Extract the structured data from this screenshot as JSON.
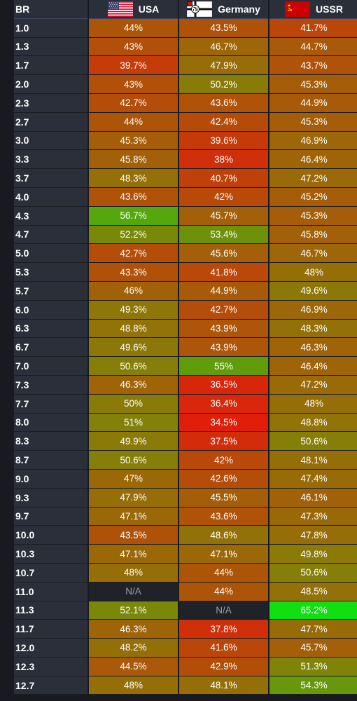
{
  "header": {
    "br_label": "BR",
    "nations": [
      {
        "name": "USA",
        "flag_icon": "usa-flag-icon"
      },
      {
        "name": "Germany",
        "flag_icon": "germany-flag-icon"
      },
      {
        "name": "USSR",
        "flag_icon": "ussr-flag-icon"
      }
    ]
  },
  "rows": [
    {
      "br": "1.0",
      "values": [
        "44%",
        "43.5%",
        "41.7%"
      ]
    },
    {
      "br": "1.3",
      "values": [
        "43%",
        "46.7%",
        "44.7%"
      ]
    },
    {
      "br": "1.7",
      "values": [
        "39.7%",
        "47.9%",
        "43.7%"
      ]
    },
    {
      "br": "2.0",
      "values": [
        "43%",
        "50.2%",
        "45.3%"
      ]
    },
    {
      "br": "2.3",
      "values": [
        "42.7%",
        "43.6%",
        "44.9%"
      ]
    },
    {
      "br": "2.7",
      "values": [
        "44%",
        "42.4%",
        "45.3%"
      ]
    },
    {
      "br": "3.0",
      "values": [
        "45.3%",
        "39.6%",
        "46.9%"
      ]
    },
    {
      "br": "3.3",
      "values": [
        "45.8%",
        "38%",
        "46.4%"
      ]
    },
    {
      "br": "3.7",
      "values": [
        "48.3%",
        "40.7%",
        "47.2%"
      ]
    },
    {
      "br": "4.0",
      "values": [
        "43.6%",
        "42%",
        "45.2%"
      ]
    },
    {
      "br": "4.3",
      "values": [
        "56.7%",
        "45.7%",
        "45.3%"
      ]
    },
    {
      "br": "4.7",
      "values": [
        "52.2%",
        "53.4%",
        "45.8%"
      ]
    },
    {
      "br": "5.0",
      "values": [
        "42.7%",
        "45.6%",
        "46.7%"
      ]
    },
    {
      "br": "5.3",
      "values": [
        "43.3%",
        "41.8%",
        "48%"
      ]
    },
    {
      "br": "5.7",
      "values": [
        "46%",
        "44.9%",
        "49.6%"
      ]
    },
    {
      "br": "6.0",
      "values": [
        "49.3%",
        "42.7%",
        "46.9%"
      ]
    },
    {
      "br": "6.3",
      "values": [
        "48.8%",
        "43.9%",
        "48.3%"
      ]
    },
    {
      "br": "6.7",
      "values": [
        "49.6%",
        "43.9%",
        "46.3%"
      ]
    },
    {
      "br": "7.0",
      "values": [
        "50.6%",
        "55%",
        "46.4%"
      ]
    },
    {
      "br": "7.3",
      "values": [
        "46.3%",
        "36.5%",
        "47.2%"
      ]
    },
    {
      "br": "7.7",
      "values": [
        "50%",
        "36.4%",
        "48%"
      ]
    },
    {
      "br": "8.0",
      "values": [
        "51%",
        "34.5%",
        "48.8%"
      ]
    },
    {
      "br": "8.3",
      "values": [
        "49.9%",
        "37.5%",
        "50.6%"
      ]
    },
    {
      "br": "8.7",
      "values": [
        "50.6%",
        "42%",
        "48.1%"
      ]
    },
    {
      "br": "9.0",
      "values": [
        "47%",
        "42.6%",
        "47.4%"
      ]
    },
    {
      "br": "9.3",
      "values": [
        "47.9%",
        "45.5%",
        "46.1%"
      ]
    },
    {
      "br": "9.7",
      "values": [
        "47.1%",
        "43.6%",
        "47.3%"
      ]
    },
    {
      "br": "10.0",
      "values": [
        "43.5%",
        "48.6%",
        "47.8%"
      ]
    },
    {
      "br": "10.3",
      "values": [
        "47.1%",
        "47.1%",
        "49.8%"
      ]
    },
    {
      "br": "10.7",
      "values": [
        "48%",
        "44%",
        "50.6%"
      ]
    },
    {
      "br": "11.0",
      "values": [
        "N/A",
        "44%",
        "48.5%"
      ]
    },
    {
      "br": "11.3",
      "values": [
        "52.1%",
        "N/A",
        "65.2%"
      ]
    },
    {
      "br": "11.7",
      "values": [
        "46.3%",
        "37.8%",
        "47.7%"
      ]
    },
    {
      "br": "12.0",
      "values": [
        "48.2%",
        "41.6%",
        "45.7%"
      ]
    },
    {
      "br": "12.3",
      "values": [
        "44.5%",
        "42.9%",
        "51.3%"
      ]
    },
    {
      "br": "12.7",
      "values": [
        "48%",
        "48.1%",
        "54.3%"
      ]
    }
  ],
  "colors": {
    "header_bg": "#2b2f3a",
    "na_bg": "#1f2229",
    "low": "#e01e0a",
    "mid": "#8a7a08",
    "high": "#10e010"
  }
}
